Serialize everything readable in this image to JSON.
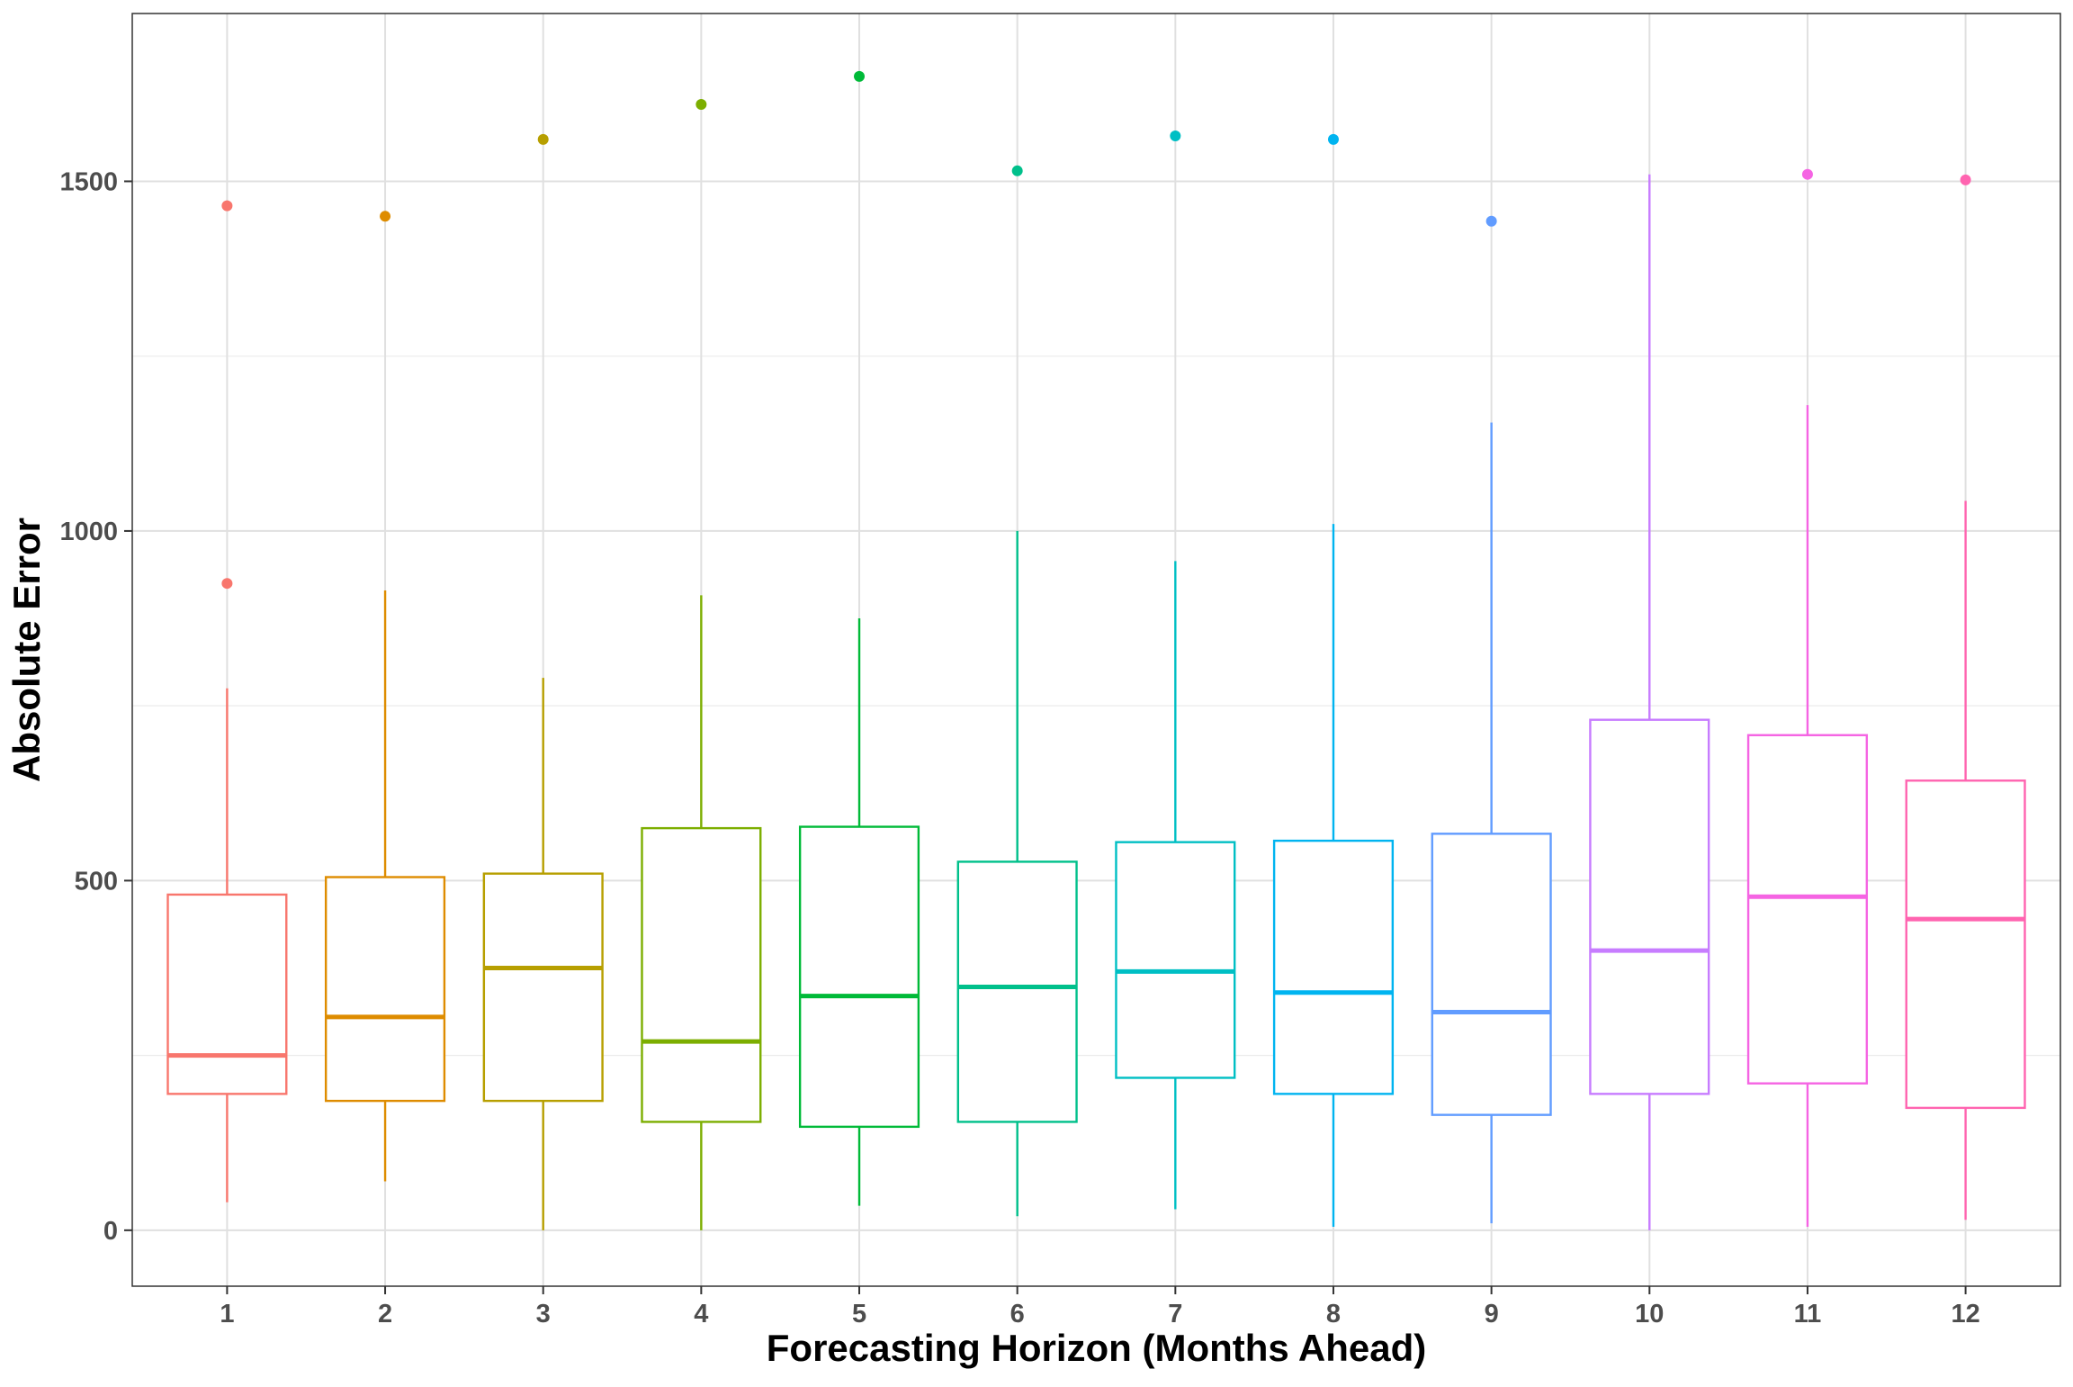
{
  "chart_data": {
    "type": "box",
    "title": "",
    "xlabel": "Forecasting Horizon (Months Ahead)",
    "ylabel": "Absolute Error",
    "ylim": [
      -80,
      1740
    ],
    "yticks": [
      0,
      500,
      1000,
      1500
    ],
    "grid": true,
    "legend": "none",
    "categories": [
      "1",
      "2",
      "3",
      "4",
      "5",
      "6",
      "7",
      "8",
      "9",
      "10",
      "11",
      "12"
    ],
    "colors": [
      "#F8766D",
      "#DE8C00",
      "#B79F00",
      "#7CAE00",
      "#00BA38",
      "#00C08B",
      "#00BFC4",
      "#00B4F0",
      "#619CFF",
      "#C77CFF",
      "#F564E3",
      "#FF64B0"
    ],
    "boxes": [
      {
        "min": 40,
        "q1": 195,
        "median": 250,
        "q3": 480,
        "max": 775,
        "outliers": [
          925,
          1465
        ]
      },
      {
        "min": 70,
        "q1": 185,
        "median": 305,
        "q3": 505,
        "max": 915,
        "outliers": [
          1450
        ]
      },
      {
        "min": 0,
        "q1": 185,
        "median": 375,
        "q3": 510,
        "max": 790,
        "outliers": [
          1560
        ]
      },
      {
        "min": 0,
        "q1": 155,
        "median": 270,
        "q3": 575,
        "max": 908,
        "outliers": [
          1610
        ]
      },
      {
        "min": 35,
        "q1": 148,
        "median": 335,
        "q3": 577,
        "max": 875,
        "outliers": [
          1650
        ]
      },
      {
        "min": 20,
        "q1": 155,
        "median": 348,
        "q3": 527,
        "max": 1000,
        "outliers": [
          1515
        ]
      },
      {
        "min": 30,
        "q1": 218,
        "median": 370,
        "q3": 555,
        "max": 957,
        "outliers": [
          1565
        ]
      },
      {
        "min": 5,
        "q1": 195,
        "median": 340,
        "q3": 557,
        "max": 1010,
        "outliers": [
          1560
        ]
      },
      {
        "min": 10,
        "q1": 165,
        "median": 312,
        "q3": 567,
        "max": 1155,
        "outliers": [
          1443
        ]
      },
      {
        "min": 0,
        "q1": 195,
        "median": 400,
        "q3": 730,
        "max": 1510,
        "outliers": []
      },
      {
        "min": 5,
        "q1": 210,
        "median": 477,
        "q3": 708,
        "max": 1180,
        "outliers": [
          1510
        ]
      },
      {
        "min": 15,
        "q1": 175,
        "median": 445,
        "q3": 643,
        "max": 1043,
        "outliers": [
          1502
        ]
      }
    ]
  }
}
